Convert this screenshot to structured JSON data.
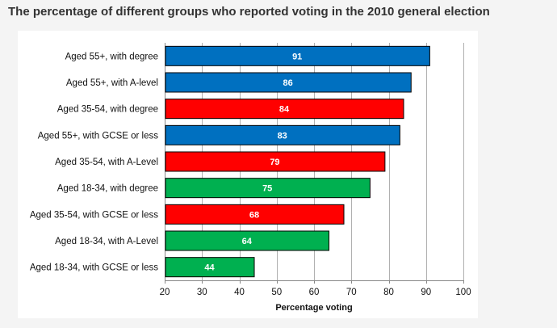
{
  "page": {
    "title": "The percentage of different groups who reported voting in the 2010 general election"
  },
  "chart_data": {
    "type": "bar",
    "orientation": "horizontal",
    "title": "The percentage of different groups who reported voting in the 2010 general election",
    "xlabel": "Percentage voting",
    "ylabel": "",
    "xlim": [
      20,
      100
    ],
    "xticks": [
      20,
      30,
      40,
      50,
      60,
      70,
      80,
      90,
      100
    ],
    "grid": true,
    "legend": "none",
    "categories": [
      "Aged 55+, with degree",
      "Aged 55+, with A-level",
      "Aged 35-54, with degree",
      "Aged 55+, with GCSE or less",
      "Aged 35-54, with A-Level",
      "Aged 18-34, with degree",
      "Aged 35-54, with GCSE or less",
      "Aged 18-34, with A-Level",
      "Aged 18-34, with GCSE or less"
    ],
    "values": [
      91,
      86,
      84,
      83,
      79,
      75,
      68,
      64,
      44
    ],
    "groups": [
      "55+",
      "55+",
      "35-54",
      "55+",
      "35-54",
      "18-34",
      "35-54",
      "18-34",
      "18-34"
    ],
    "group_colors": {
      "55+": "#0070c0",
      "35-54": "#ff0000",
      "18-34": "#00b050"
    }
  }
}
